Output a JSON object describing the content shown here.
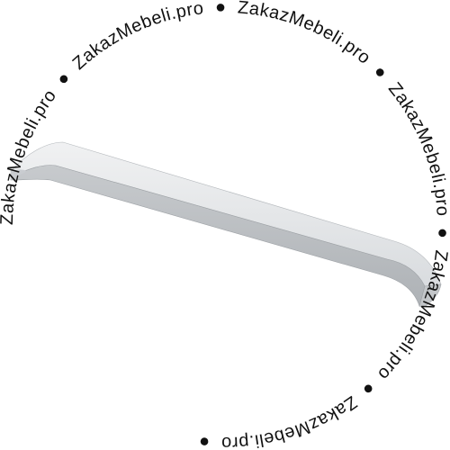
{
  "watermark": {
    "text": "ZakazMebeli.pro",
    "separator": "●",
    "color": "#111111"
  },
  "product": {
    "metal_light": "#eceef0",
    "metal_mid": "#d7dadd",
    "metal_dark": "#b9bdc1",
    "edge": "#8e9297"
  }
}
